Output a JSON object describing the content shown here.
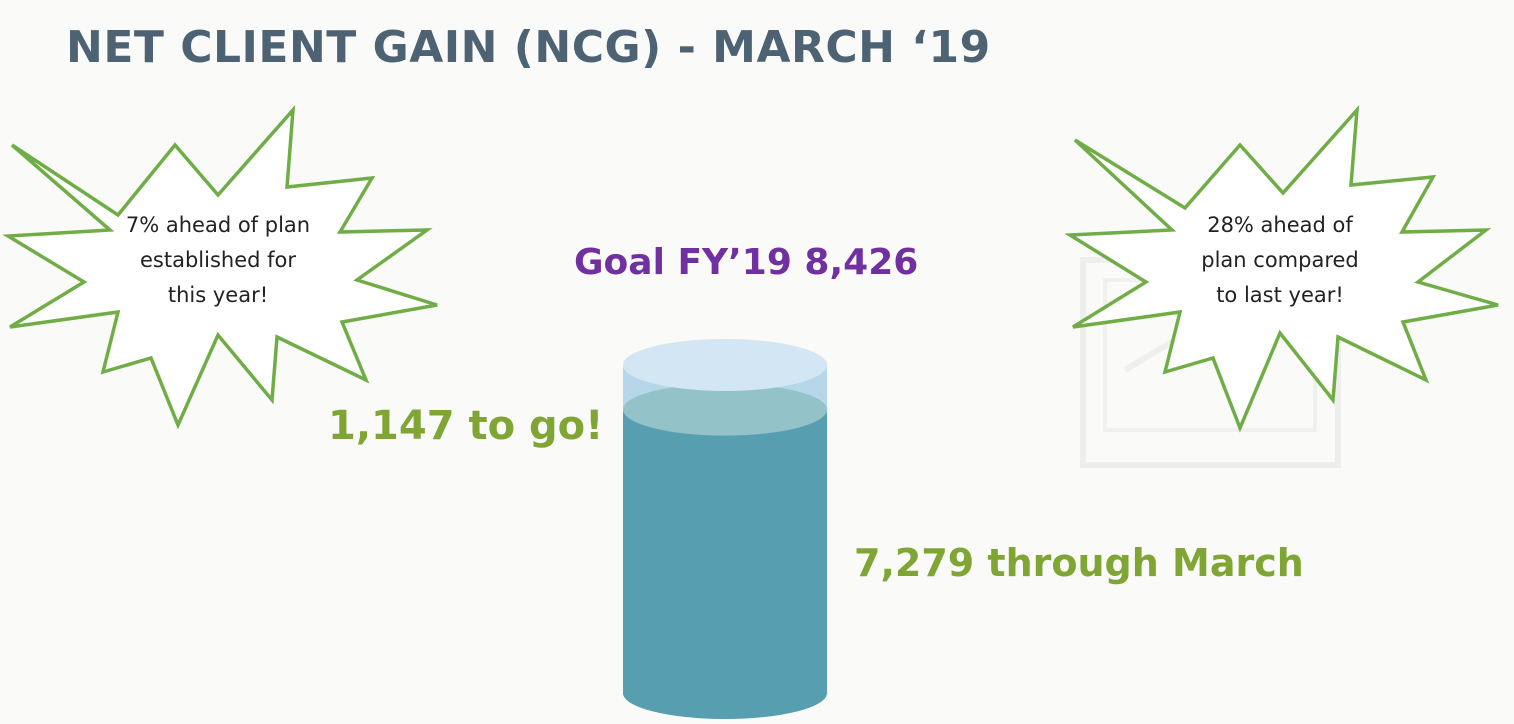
{
  "slide": {
    "title": "NET CLIENT GAIN (NCG) - MARCH ‘19"
  },
  "callouts": {
    "left": {
      "line1": "7% ahead of plan",
      "line2": "established for",
      "line3": "this year!"
    },
    "right": {
      "line1": "28% ahead of",
      "line2": "plan compared",
      "line3": "to last year!"
    }
  },
  "goal": {
    "label": "Goal FY’19 8,426"
  },
  "remaining": {
    "label": "1,147 to go!"
  },
  "progress": {
    "label": "7,279 through March",
    "fraction_complete": 0.864
  },
  "colors": {
    "title": "#4d6373",
    "burst_outline": "#70ad47",
    "goal_text": "#7030a0",
    "highlight_text": "#7fa535",
    "fill_water": "#579eb1",
    "fill_empty": "#b6d7ea"
  }
}
